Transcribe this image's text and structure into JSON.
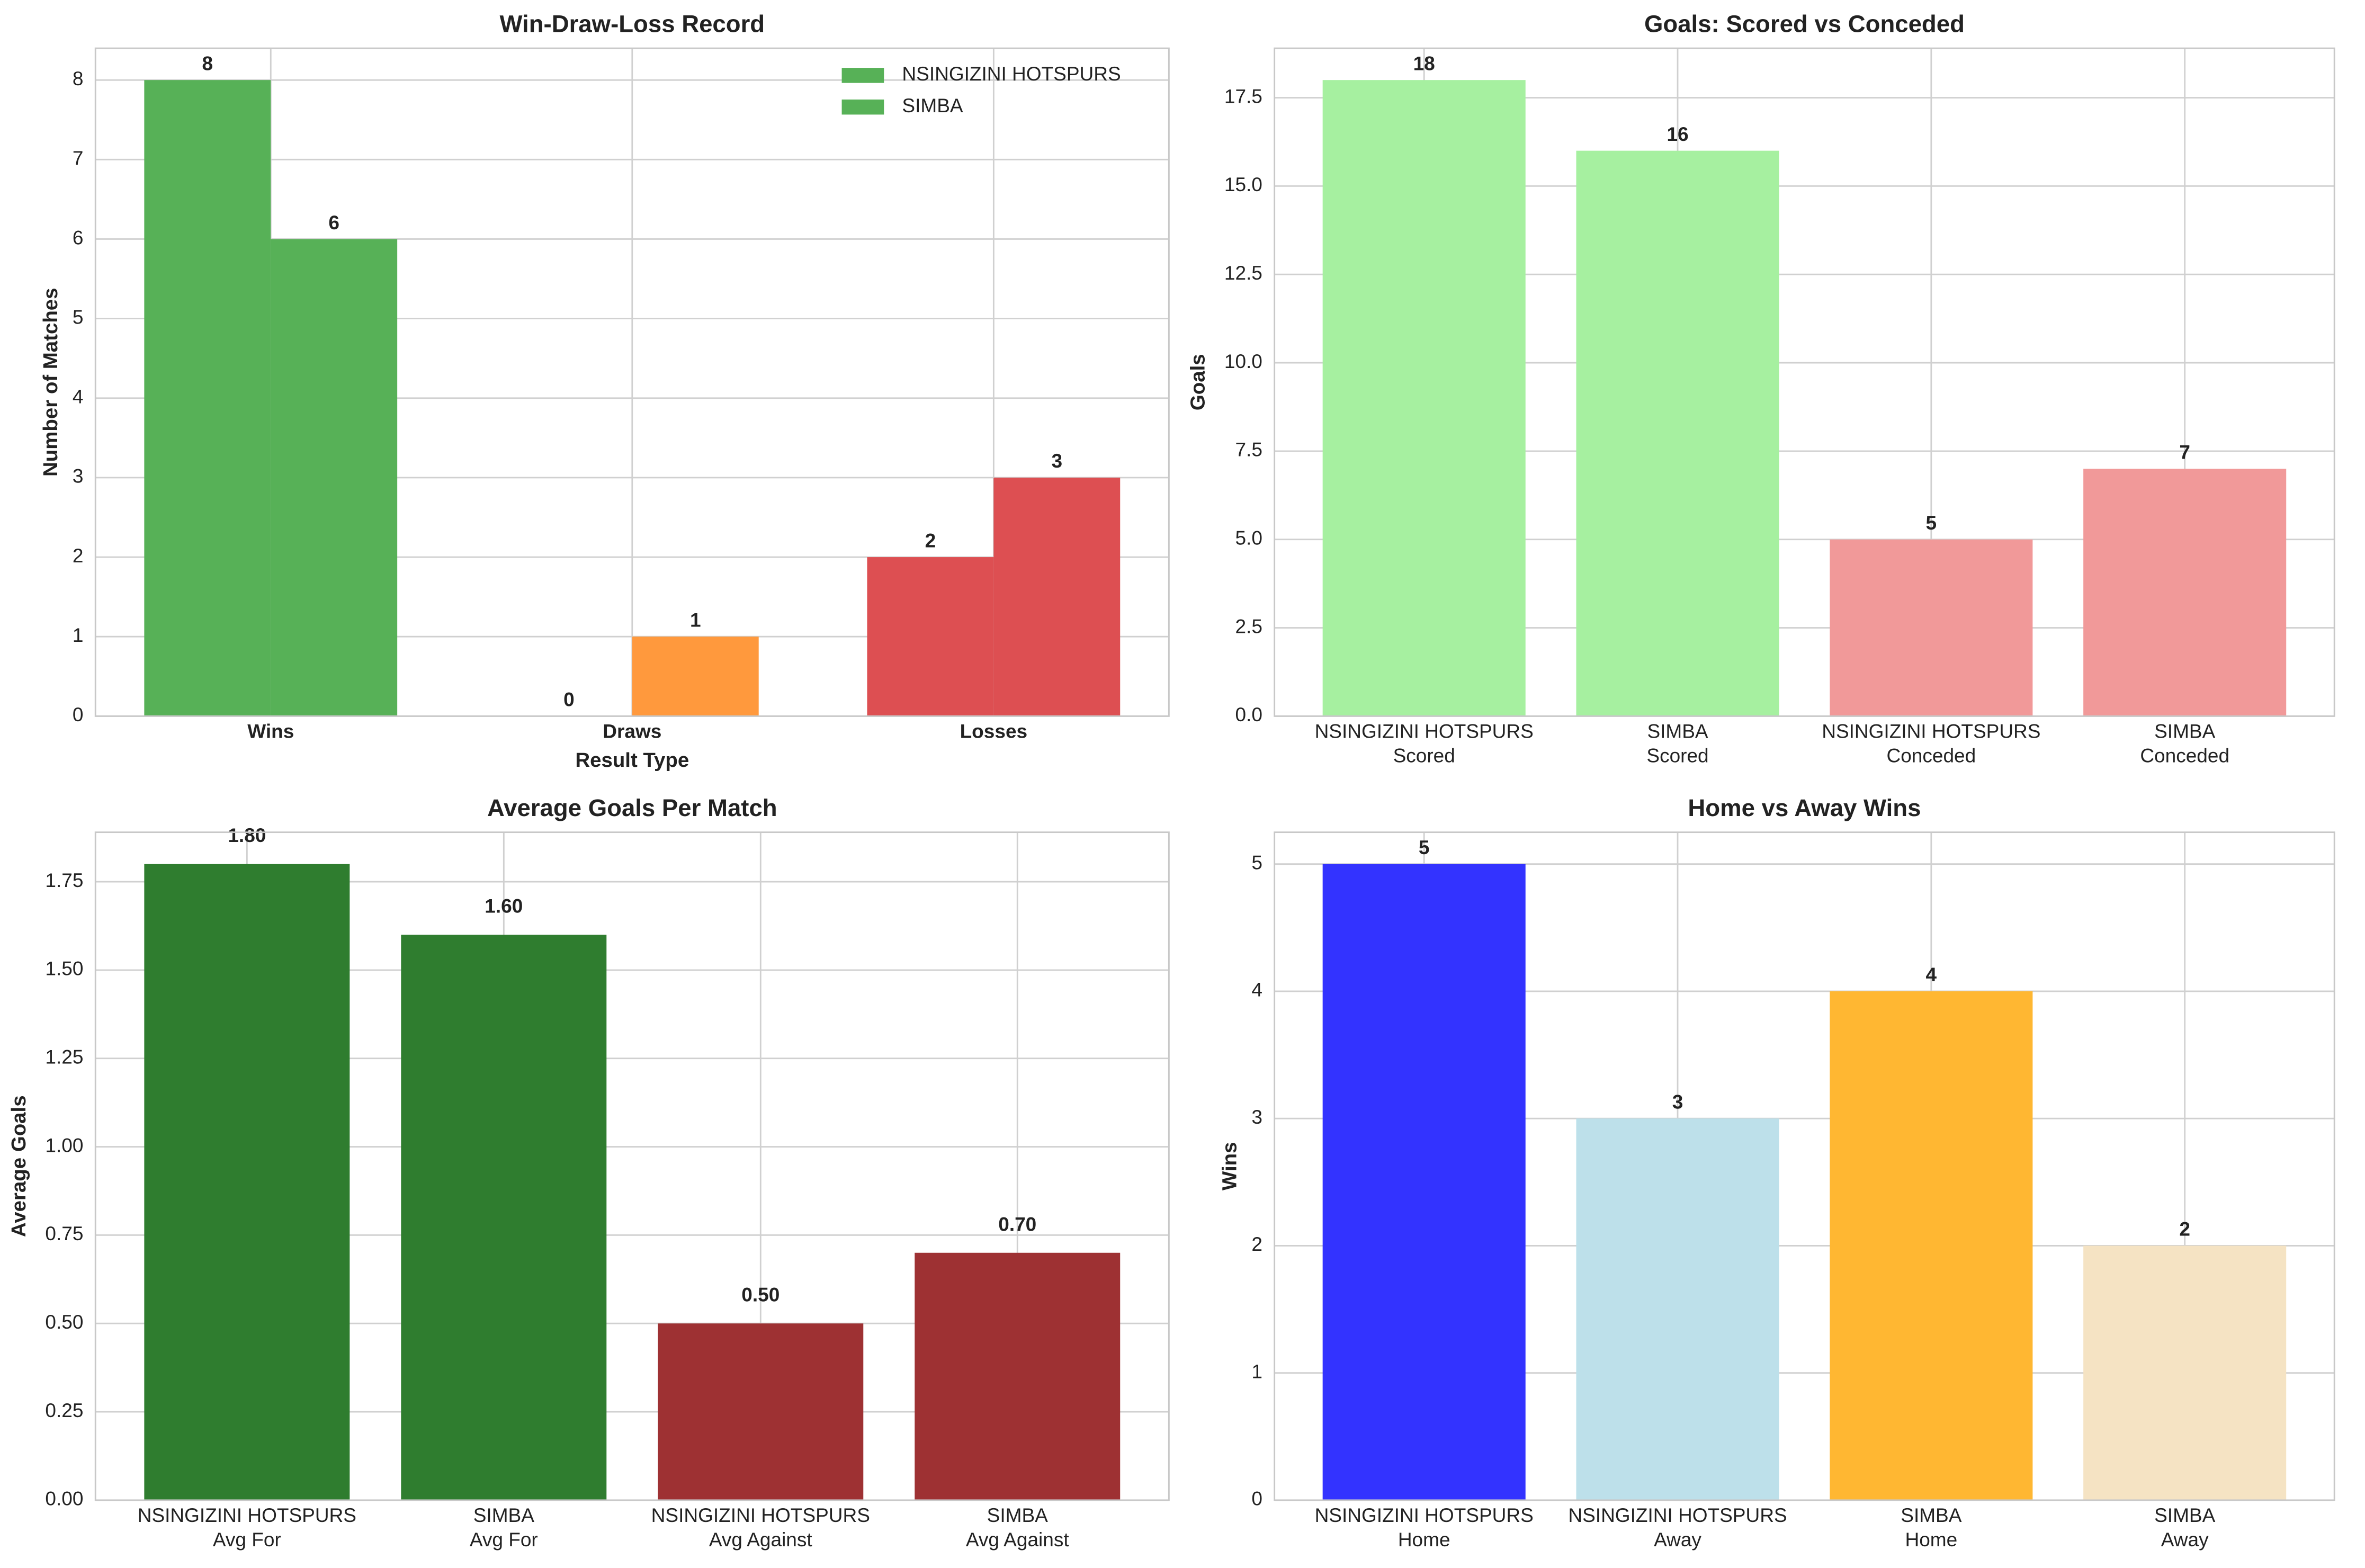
{
  "chart_data": [
    {
      "type": "bar",
      "title": "Win-Draw-Loss Record",
      "xlabel": "Result Type",
      "ylabel": "Number of Matches",
      "categories": [
        "Wins",
        "Draws",
        "Losses"
      ],
      "colors": [
        "#57b157",
        "#ff993d",
        "#dd4f52"
      ],
      "series": [
        {
          "name": "NSINGIZINI HOTSPURS",
          "color": "#57b157",
          "values": [
            8,
            0,
            2
          ]
        },
        {
          "name": "SIMBA",
          "color": "#57b157",
          "values": [
            6,
            1,
            3
          ]
        }
      ],
      "ylim": [
        0,
        8.4
      ],
      "yticks": [
        0,
        1,
        2,
        3,
        4,
        5,
        6,
        7,
        8
      ],
      "grid": true,
      "legend": "upper right"
    },
    {
      "type": "bar",
      "title": "Goals: Scored vs Conceded",
      "ylabel": "Goals",
      "categories": [
        "NSINGIZINI HOTSPURS\nScored",
        "SIMBA\nScored",
        "NSINGIZINI HOTSPURS\nConceded",
        "SIMBA\nConceded"
      ],
      "values": [
        18,
        16,
        5,
        7
      ],
      "colors": [
        "#a6f0a0",
        "#a6f0a0",
        "#f19999",
        "#f19999"
      ],
      "ylim": [
        0,
        18.9
      ],
      "yticks": [
        {
          "value": 0,
          "label": "0.0"
        },
        2.5,
        {
          "value": 5,
          "label": "5.0"
        },
        7.5,
        {
          "value": 10,
          "label": "10.0"
        },
        12.5,
        {
          "value": 15,
          "label": "15.0"
        },
        17.5
      ],
      "grid": true
    },
    {
      "type": "bar",
      "title": "Average Goals Per Match",
      "ylabel": "Average Goals",
      "categories": [
        "NSINGIZINI HOTSPURS\nAvg For",
        "SIMBA\nAvg For",
        "NSINGIZINI HOTSPURS\nAvg Against",
        "SIMBA\nAvg Against"
      ],
      "values": [
        1.8,
        1.6,
        0.5,
        0.7
      ],
      "value_labels": [
        "1.80",
        "1.60",
        "0.50",
        "0.70"
      ],
      "colors": [
        "#2f7d2f",
        "#2f7d2f",
        "#9e3133",
        "#9e3133"
      ],
      "ylim": [
        0,
        1.89
      ],
      "yticks": [
        {
          "value": 0,
          "label": "0.00"
        },
        0.25,
        {
          "value": 0.5,
          "label": "0.50"
        },
        0.75,
        {
          "value": 1,
          "label": "1.00"
        },
        1.25,
        {
          "value": 1.5,
          "label": "1.50"
        },
        1.75
      ],
      "grid": true
    },
    {
      "type": "bar",
      "title": "Home vs Away Wins",
      "ylabel": "Wins",
      "categories": [
        "NSINGIZINI HOTSPURS\nHome",
        "NSINGIZINI HOTSPURS\nAway",
        "SIMBA\nHome",
        "SIMBA\nAway"
      ],
      "values": [
        5,
        3,
        4,
        2
      ],
      "colors": [
        "#3333ff",
        "#bde0ea",
        "#ffb732",
        "#f5e3c3"
      ],
      "ylim": [
        0,
        5.25
      ],
      "yticks": [
        0,
        1,
        2,
        3,
        4,
        5
      ],
      "grid": true
    }
  ]
}
